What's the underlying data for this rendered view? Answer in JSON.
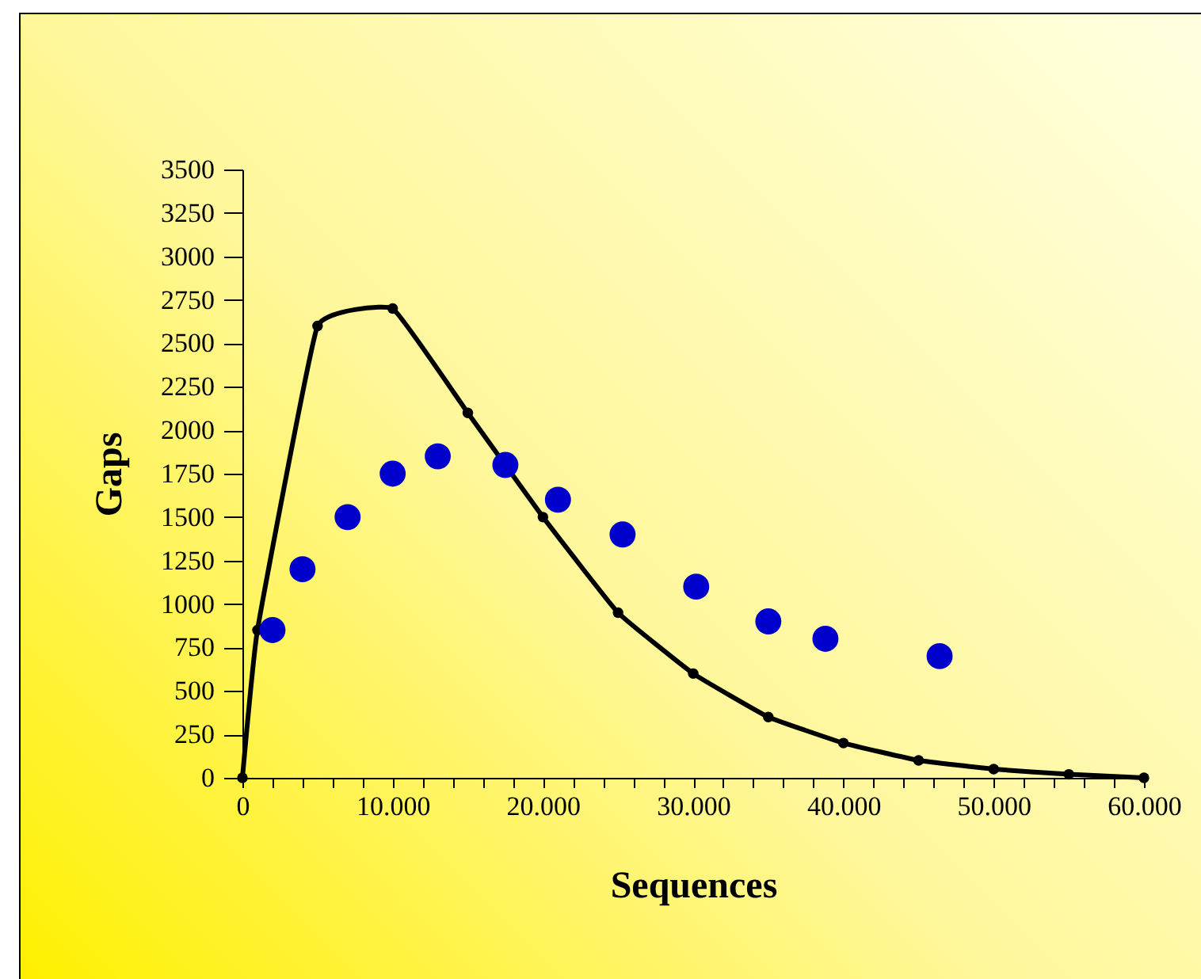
{
  "chart_data": {
    "type": "scatter",
    "xlabel": "Sequences",
    "ylabel": "Gaps",
    "xlim": [
      0,
      60000
    ],
    "ylim": [
      0,
      3500
    ],
    "xticks": [
      {
        "value": 0,
        "label": "0"
      },
      {
        "value": 2000,
        "label": null
      },
      {
        "value": 4000,
        "label": null
      },
      {
        "value": 6000,
        "label": null
      },
      {
        "value": 8000,
        "label": null
      },
      {
        "value": 10000,
        "label": "10.000"
      },
      {
        "value": 12000,
        "label": null
      },
      {
        "value": 14000,
        "label": null
      },
      {
        "value": 16000,
        "label": null
      },
      {
        "value": 18000,
        "label": null
      },
      {
        "value": 20000,
        "label": "20.000"
      },
      {
        "value": 22000,
        "label": null
      },
      {
        "value": 24000,
        "label": null
      },
      {
        "value": 26000,
        "label": null
      },
      {
        "value": 28000,
        "label": null
      },
      {
        "value": 30000,
        "label": "30.000"
      },
      {
        "value": 32000,
        "label": null
      },
      {
        "value": 34000,
        "label": null
      },
      {
        "value": 36000,
        "label": null
      },
      {
        "value": 38000,
        "label": null
      },
      {
        "value": 40000,
        "label": "40.000"
      },
      {
        "value": 42000,
        "label": null
      },
      {
        "value": 44000,
        "label": null
      },
      {
        "value": 46000,
        "label": null
      },
      {
        "value": 48000,
        "label": null
      },
      {
        "value": 50000,
        "label": "50.000"
      },
      {
        "value": 52000,
        "label": null
      },
      {
        "value": 54000,
        "label": null
      },
      {
        "value": 56000,
        "label": null
      },
      {
        "value": 58000,
        "label": null
      },
      {
        "value": 60000,
        "label": "60.000"
      }
    ],
    "yticks": [
      0,
      250,
      500,
      750,
      1000,
      1250,
      1500,
      1750,
      2000,
      2250,
      2500,
      2750,
      3000,
      3250,
      3500
    ],
    "grid": false,
    "series": [
      {
        "type": "line",
        "color": "#000000",
        "marker": "circle",
        "line_style": "solid",
        "x": [
          0,
          1000,
          5000,
          10000,
          15000,
          20000,
          25000,
          30000,
          35000,
          40000,
          45000,
          50000,
          55000,
          60000
        ],
        "values": [
          0,
          850,
          2600,
          2700,
          2100,
          1500,
          950,
          600,
          350,
          200,
          100,
          50,
          20,
          0
        ]
      },
      {
        "color": "#0000cc",
        "marker": "circle",
        "x": [
          2000,
          4000,
          7000,
          10000,
          13000,
          17500,
          21000,
          25300,
          30200,
          35000,
          38800,
          46400
        ],
        "values": [
          850,
          1200,
          1500,
          1750,
          1850,
          1800,
          1600,
          1400,
          1100,
          900,
          800,
          700
        ]
      }
    ]
  }
}
